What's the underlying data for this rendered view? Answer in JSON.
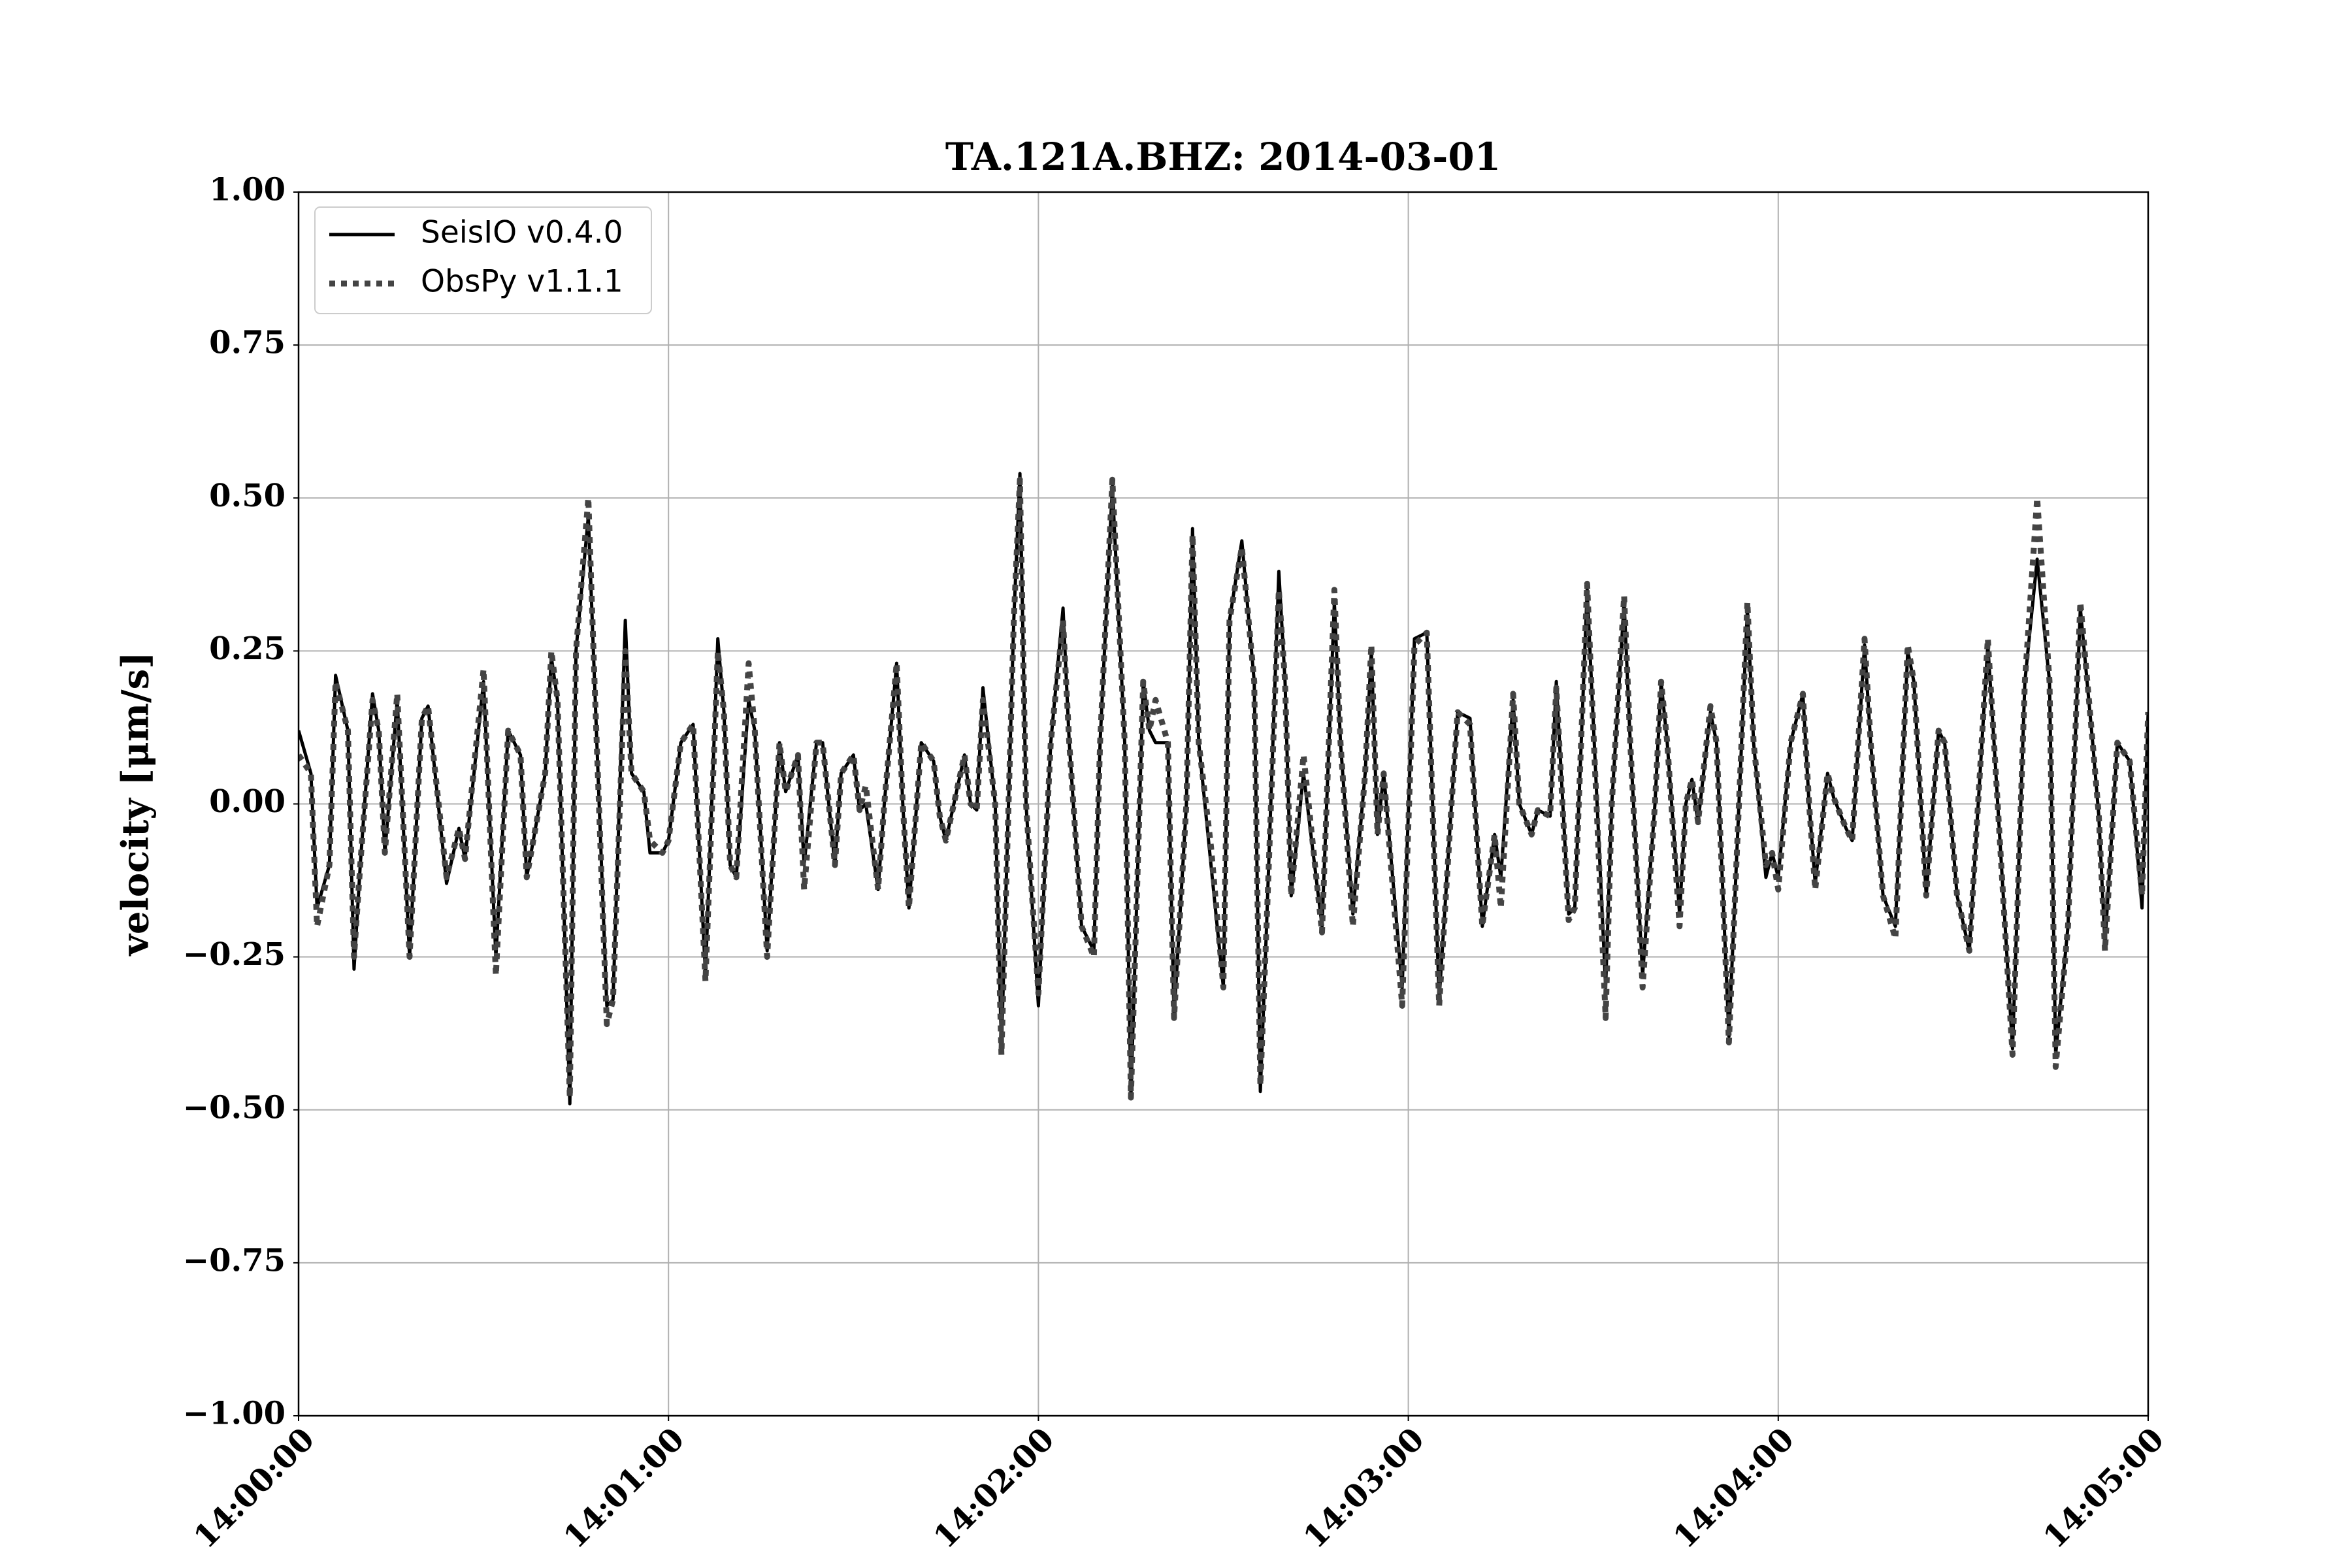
{
  "chart_data": {
    "type": "line",
    "title": "TA.121A.BHZ: 2014-03-01",
    "ylabel": "velocity [μm/s]",
    "xlim": [
      "14:00:00",
      "14:05:00"
    ],
    "xticks": [
      "14:00:00",
      "14:01:00",
      "14:02:00",
      "14:03:00",
      "14:04:00",
      "14:05:00"
    ],
    "ylim": [
      -1,
      1
    ],
    "yticks": [
      {
        "value": -1,
        "label": "−1.00"
      },
      {
        "value": -0.75,
        "label": "−0.75"
      },
      {
        "value": -0.5,
        "label": "−0.50"
      },
      {
        "value": -0.25,
        "label": "−0.25"
      },
      {
        "value": 0,
        "label": "0.00"
      },
      {
        "value": 0.25,
        "label": "0.25"
      },
      {
        "value": 0.5,
        "label": "0.50"
      },
      {
        "value": 0.75,
        "label": "0.75"
      },
      {
        "value": 1,
        "label": "1.00"
      }
    ],
    "grid": true,
    "legend": "upper left",
    "x": [
      "14:00:00",
      "14:00:02",
      "14:00:03",
      "14:00:05",
      "14:00:06",
      "14:00:08",
      "14:00:09",
      "14:00:10",
      "14:00:12",
      "14:00:13",
      "14:00:14",
      "14:00:16",
      "14:00:18",
      "14:00:20",
      "14:00:21",
      "14:00:24",
      "14:00:26",
      "14:00:27",
      "14:00:30",
      "14:00:32",
      "14:00:34",
      "14:00:36",
      "14:00:37",
      "14:00:40",
      "14:00:41",
      "14:00:42",
      "14:00:44",
      "14:00:45",
      "14:00:47",
      "14:00:48",
      "14:00:50",
      "14:00:51",
      "14:00:53",
      "14:00:54",
      "14:00:56",
      "14:00:57",
      "14:00:59",
      "14:01:00",
      "14:01:02",
      "14:01:04",
      "14:01:06",
      "14:01:08",
      "14:01:09",
      "14:01:10",
      "14:01:11",
      "14:01:13",
      "14:01:14",
      "14:01:16",
      "14:01:18",
      "14:01:19",
      "14:01:21",
      "14:01:22",
      "14:01:24",
      "14:01:25",
      "14:01:27",
      "14:01:28",
      "14:01:30",
      "14:01:31",
      "14:01:32",
      "14:01:34",
      "14:01:35",
      "14:01:37",
      "14:01:38",
      "14:01:39",
      "14:01:41",
      "14:01:43",
      "14:01:44",
      "14:01:45",
      "14:01:48",
      "14:01:49",
      "14:01:50",
      "14:01:51",
      "14:01:53",
      "14:01:54",
      "14:01:56",
      "14:01:57",
      "14:01:58",
      "14:02:00",
      "14:02:02",
      "14:02:04",
      "14:02:05",
      "14:02:07",
      "14:02:09",
      "14:02:10",
      "14:02:12",
      "14:02:14",
      "14:02:15",
      "14:02:17",
      "14:02:18",
      "14:02:19",
      "14:02:21",
      "14:02:22",
      "14:02:24",
      "14:02:25",
      "14:02:26",
      "14:02:28",
      "14:02:30",
      "14:02:31",
      "14:02:33",
      "14:02:35",
      "14:02:36",
      "14:02:37",
      "14:02:39",
      "14:02:40",
      "14:02:41",
      "14:02:43",
      "14:02:46",
      "14:02:48",
      "14:02:49",
      "14:02:51",
      "14:02:53",
      "14:02:54",
      "14:02:55",
      "14:02:56",
      "14:02:59",
      "14:03:01",
      "14:03:03",
      "14:03:05",
      "14:03:07",
      "14:03:08",
      "14:03:10",
      "14:03:12",
      "14:03:14",
      "14:03:15",
      "14:03:17",
      "14:03:18",
      "14:03:20",
      "14:03:21",
      "14:03:23",
      "14:03:24",
      "14:03:26",
      "14:03:27",
      "14:03:29",
      "14:03:32",
      "14:03:33",
      "14:03:35",
      "14:03:36",
      "14:03:38",
      "14:03:40",
      "14:03:41",
      "14:03:42",
      "14:03:44",
      "14:03:45",
      "14:03:46",
      "14:03:47",
      "14:03:49",
      "14:03:50",
      "14:03:52",
      "14:03:55",
      "14:03:56",
      "14:03:58",
      "14:03:59",
      "14:04:00",
      "14:04:02",
      "14:04:04",
      "14:04:05",
      "14:04:06",
      "14:04:08",
      "14:04:09",
      "14:04:11",
      "14:04:12",
      "14:04:14",
      "14:04:15",
      "14:04:17",
      "14:04:19",
      "14:04:21",
      "14:04:22",
      "14:04:24",
      "14:04:26",
      "14:04:27",
      "14:04:29",
      "14:04:31",
      "14:04:34",
      "14:04:35",
      "14:04:38",
      "14:04:40",
      "14:04:42",
      "14:04:44",
      "14:04:45",
      "14:04:47",
      "14:04:49",
      "14:04:51",
      "14:04:52",
      "14:04:53",
      "14:04:55",
      "14:04:57",
      "14:04:59",
      "14:05:00"
    ],
    "series": [
      {
        "name": "SeisIO v0.4.0",
        "color": "#000000",
        "linestyle": "solid",
        "values": [
          0.12,
          0.05,
          -0.17,
          -0.1,
          0.21,
          0.12,
          -0.27,
          -0.1,
          0.18,
          0.12,
          -0.08,
          0.17,
          -0.25,
          0.14,
          0.16,
          -0.13,
          -0.04,
          -0.09,
          0.2,
          -0.25,
          0.12,
          0.08,
          -0.12,
          0.05,
          0.24,
          0.17,
          -0.49,
          0.25,
          0.47,
          0.2,
          -0.33,
          -0.32,
          0.3,
          0.05,
          0.02,
          -0.08,
          -0.08,
          -0.06,
          0.1,
          0.13,
          -0.28,
          0.27,
          0.15,
          -0.1,
          -0.12,
          0.17,
          0.12,
          -0.24,
          0.1,
          0.02,
          0.08,
          -0.1,
          0.1,
          0.1,
          -0.1,
          0.05,
          0.08,
          -0.01,
          0.0,
          -0.14,
          0.0,
          0.23,
          0.0,
          -0.17,
          0.1,
          0.07,
          -0.02,
          -0.06,
          0.08,
          0.0,
          -0.01,
          0.19,
          0.0,
          -0.4,
          0.3,
          0.54,
          0.0,
          -0.33,
          0.1,
          0.32,
          0.1,
          -0.2,
          -0.24,
          0.1,
          0.52,
          0.1,
          -0.48,
          0.2,
          0.12,
          0.1,
          0.1,
          -0.35,
          0.0,
          0.45,
          0.1,
          -0.1,
          -0.3,
          0.3,
          0.43,
          0.2,
          -0.47,
          -0.2,
          0.38,
          0.2,
          -0.15,
          0.05,
          -0.2,
          0.33,
          0.1,
          -0.18,
          0.05,
          0.25,
          -0.05,
          0.05,
          -0.3,
          0.27,
          0.28,
          -0.32,
          0.0,
          0.15,
          0.14,
          -0.2,
          -0.05,
          -0.12,
          0.17,
          0.0,
          -0.05,
          -0.01,
          -0.02,
          0.2,
          -0.18,
          -0.17,
          0.35,
          -0.3,
          0.0,
          0.33,
          0.1,
          -0.28,
          0.0,
          0.2,
          0.1,
          -0.18,
          0.0,
          0.04,
          -0.03,
          0.15,
          0.1,
          -0.38,
          0.32,
          0.1,
          -0.12,
          -0.08,
          -0.12,
          0.1,
          0.18,
          0.0,
          -0.13,
          0.05,
          0.01,
          -0.04,
          -0.06,
          0.26,
          0.1,
          -0.15,
          -0.2,
          0.25,
          0.2,
          -0.15,
          0.12,
          0.1,
          -0.15,
          -0.24,
          0.26,
          0.1,
          -0.4,
          0.2,
          0.4,
          0.2,
          -0.41,
          -0.2,
          0.32,
          0.1,
          -0.02,
          -0.23,
          0.1,
          0.07,
          -0.17,
          0.15
        ]
      },
      {
        "name": "ObsPy v1.1.1",
        "color": "#444444",
        "linestyle": "dotted",
        "values": [
          0.08,
          0.05,
          -0.2,
          -0.1,
          0.2,
          0.12,
          -0.25,
          -0.1,
          0.17,
          0.12,
          -0.08,
          0.18,
          -0.25,
          0.14,
          0.16,
          -0.12,
          -0.04,
          -0.09,
          0.22,
          -0.28,
          0.12,
          0.08,
          -0.12,
          0.05,
          0.25,
          0.17,
          -0.48,
          0.25,
          0.5,
          0.2,
          -0.36,
          -0.32,
          0.25,
          0.05,
          0.02,
          -0.06,
          -0.08,
          -0.06,
          0.1,
          0.13,
          -0.29,
          0.25,
          0.15,
          -0.1,
          -0.12,
          0.23,
          0.12,
          -0.25,
          0.1,
          0.02,
          0.08,
          -0.14,
          0.1,
          0.1,
          -0.1,
          0.05,
          0.08,
          -0.01,
          0.03,
          -0.14,
          0.0,
          0.23,
          0.0,
          -0.17,
          0.1,
          0.07,
          -0.02,
          -0.06,
          0.08,
          0.0,
          -0.01,
          0.17,
          0.0,
          -0.41,
          0.3,
          0.53,
          0.0,
          -0.31,
          0.1,
          0.3,
          0.1,
          -0.2,
          -0.25,
          0.1,
          0.53,
          0.1,
          -0.48,
          0.2,
          0.12,
          0.17,
          0.1,
          -0.35,
          0.0,
          0.44,
          0.1,
          -0.07,
          -0.3,
          0.3,
          0.42,
          0.2,
          -0.46,
          -0.2,
          0.35,
          0.2,
          -0.15,
          0.08,
          -0.21,
          0.35,
          0.1,
          -0.2,
          0.05,
          0.26,
          -0.05,
          0.05,
          -0.33,
          0.26,
          0.28,
          -0.33,
          0.0,
          0.15,
          0.13,
          -0.2,
          -0.05,
          -0.17,
          0.18,
          0.0,
          -0.05,
          -0.01,
          -0.02,
          0.19,
          -0.19,
          -0.17,
          0.36,
          -0.35,
          0.0,
          0.34,
          0.1,
          -0.3,
          0.0,
          0.2,
          0.1,
          -0.2,
          0.0,
          0.04,
          -0.03,
          0.16,
          0.1,
          -0.39,
          0.33,
          0.1,
          -0.1,
          -0.08,
          -0.14,
          0.1,
          0.18,
          0.0,
          -0.14,
          0.05,
          0.01,
          -0.04,
          -0.06,
          0.27,
          0.1,
          -0.15,
          -0.22,
          0.26,
          0.2,
          -0.15,
          0.12,
          0.1,
          -0.15,
          -0.24,
          0.27,
          0.1,
          -0.41,
          0.2,
          0.5,
          0.2,
          -0.43,
          -0.2,
          0.33,
          0.1,
          -0.02,
          -0.24,
          0.1,
          0.07,
          -0.15,
          0.15
        ]
      }
    ]
  }
}
